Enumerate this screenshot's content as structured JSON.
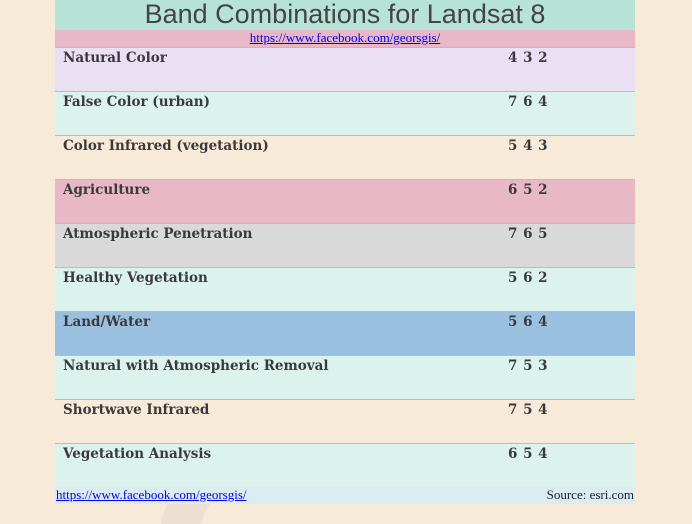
{
  "title": "Band Combinations for Landsat 8",
  "link": "https://www.facebook.com/georsgis/",
  "rows": [
    {
      "name": "Natural Color",
      "bands": "4 3 2",
      "color": "#eadff3"
    },
    {
      "name": "False Color (urban)",
      "bands": "7 6 4",
      "color": "#dcf3ed"
    },
    {
      "name": "Color Infrared (vegetation)",
      "bands": "5 4 3",
      "color": "#f8ead8"
    },
    {
      "name": "Agriculture",
      "bands": "6 5 2",
      "color": "#e8b8c6"
    },
    {
      "name": "Atmospheric Penetration",
      "bands": "7 6 5",
      "color": "#d9d9d9"
    },
    {
      "name": "Healthy Vegetation",
      "bands": "5 6 2",
      "color": "#dcf3ed"
    },
    {
      "name": "Land/Water",
      "bands": "5 6 4",
      "color": "#9ac0e0"
    },
    {
      "name": "Natural with Atmospheric Removal",
      "bands": "7 5 3",
      "color": "#dcf3ed"
    },
    {
      "name": "Shortwave Infrared",
      "bands": "7 5 4",
      "color": "#f8ead8"
    },
    {
      "name": "Vegetation Analysis",
      "bands": "6 5 4",
      "color": "#dcf3ed"
    }
  ],
  "footer": {
    "link": "https://www.facebook.com/georsgis/",
    "source": "Source: esri.com"
  }
}
